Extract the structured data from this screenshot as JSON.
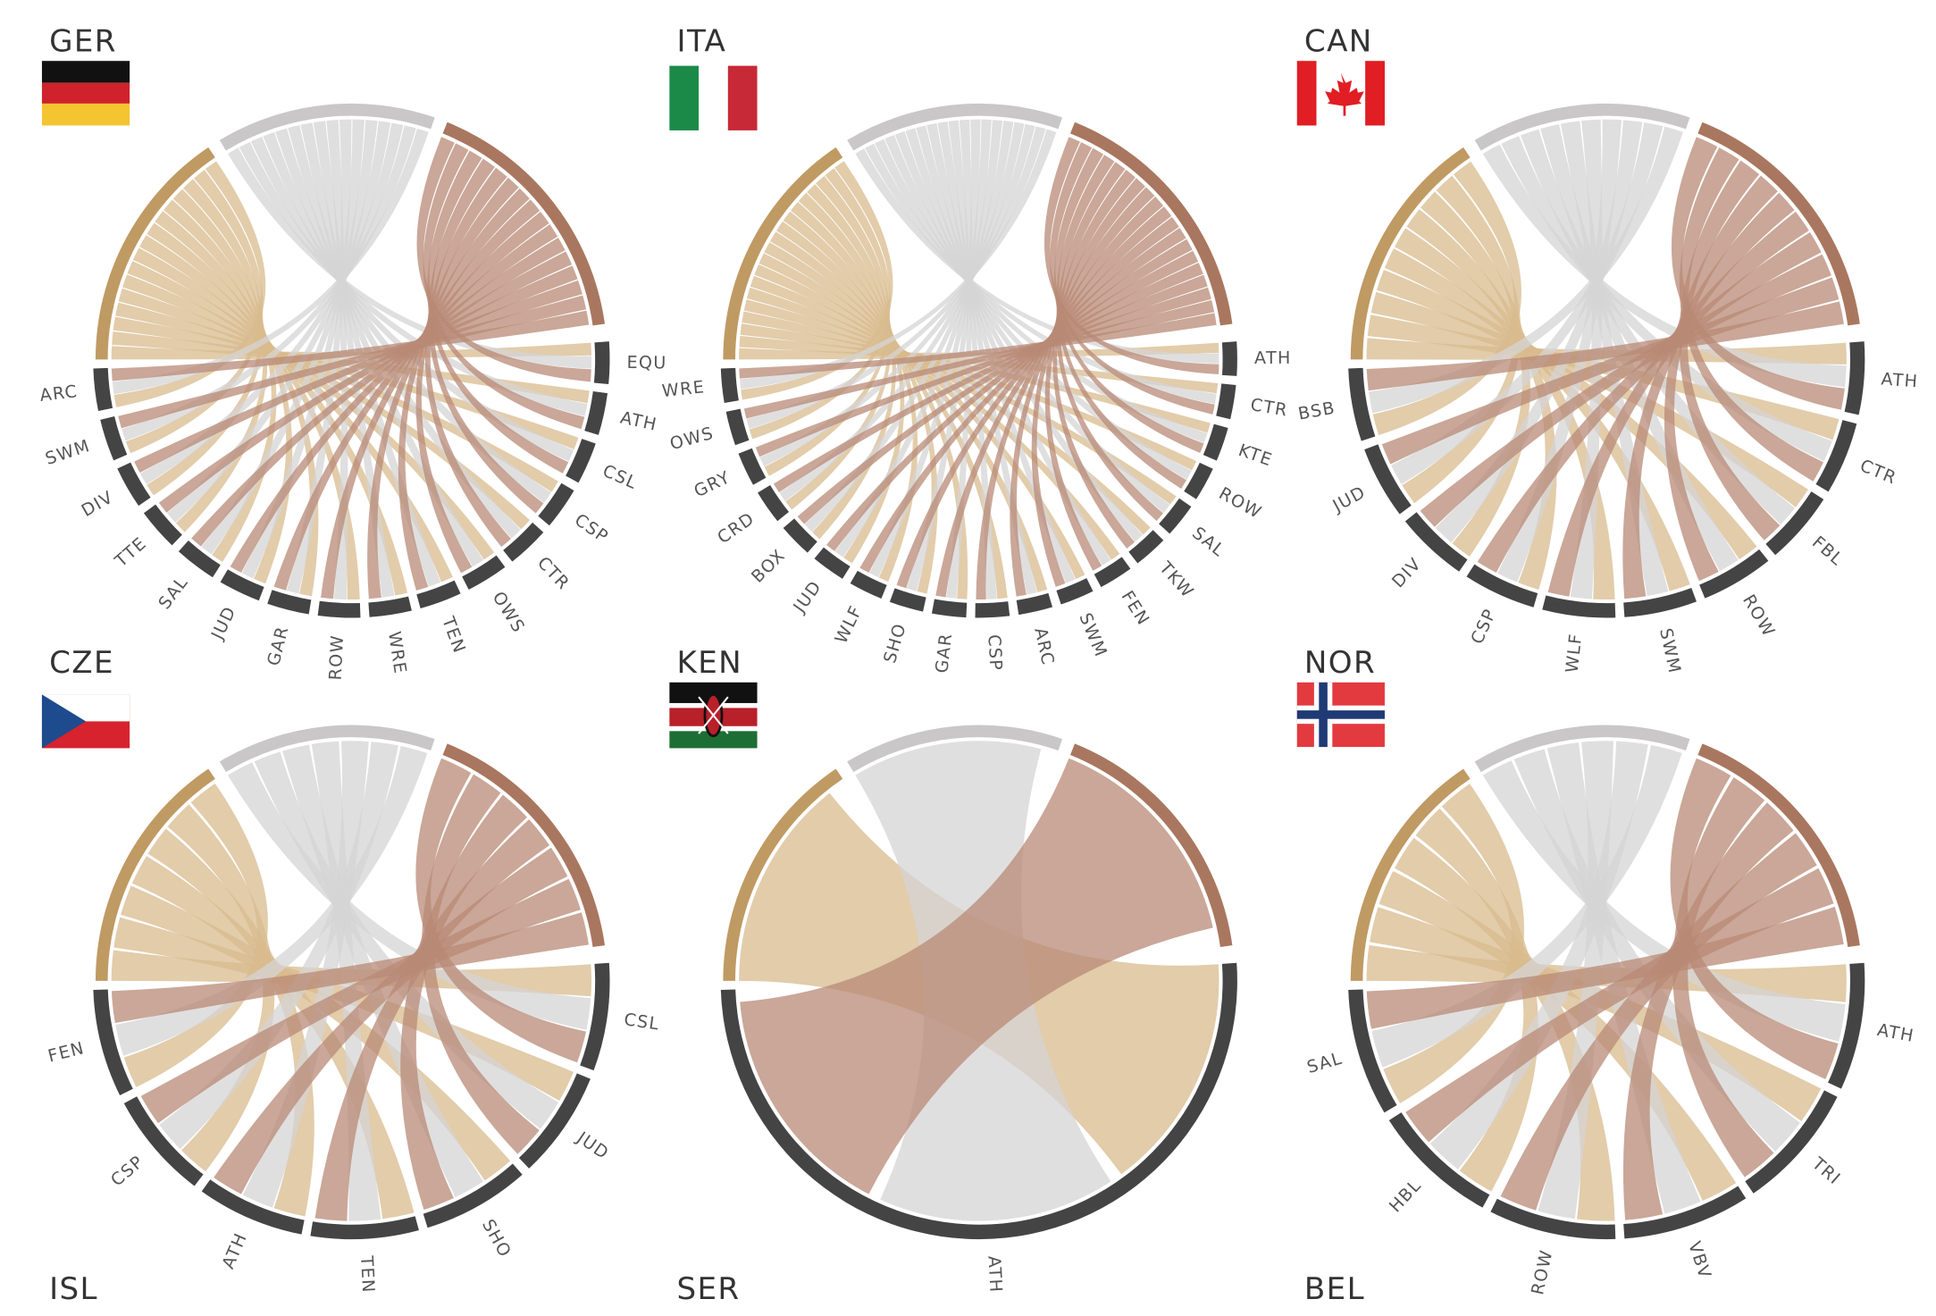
{
  "panels": [
    {
      "country": "GER",
      "sports": [
        "EQU",
        "ATH",
        "CSL",
        "CSP",
        "CTR",
        "OWS",
        "TEN",
        "WRE",
        "ROW",
        "GAR",
        "JUD",
        "SAL",
        "TTE",
        "DIV",
        "SWM",
        "ARC"
      ]
    },
    {
      "country": "ITA",
      "sports": [
        "ATH",
        "CTR",
        "KTE",
        "ROW",
        "SAL",
        "TKW",
        "FEN",
        "SWM",
        "ARC",
        "CSP",
        "GAR",
        "SHO",
        "WLF",
        "JUD",
        "BOX",
        "CRD",
        "GRY",
        "OWS",
        "WRE"
      ]
    },
    {
      "country": "CAN",
      "sports": [
        "ATH",
        "CTR",
        "FBL",
        "ROW",
        "SWM",
        "WLF",
        "CSP",
        "DIV",
        "JUD",
        "BSB"
      ]
    },
    {
      "country": "CZE",
      "sports": [
        "CSL",
        "JUD",
        "SHO",
        "TEN",
        "ATH",
        "CSP",
        "FEN"
      ]
    },
    {
      "country": "KEN",
      "sports": [
        "ATH"
      ]
    },
    {
      "country": "NOR",
      "sports": [
        "ATH",
        "TRI",
        "VBV",
        "ROW",
        "HBL",
        "SAL"
      ]
    }
  ],
  "footer": [
    "ISL",
    "SER",
    "BEL"
  ]
}
